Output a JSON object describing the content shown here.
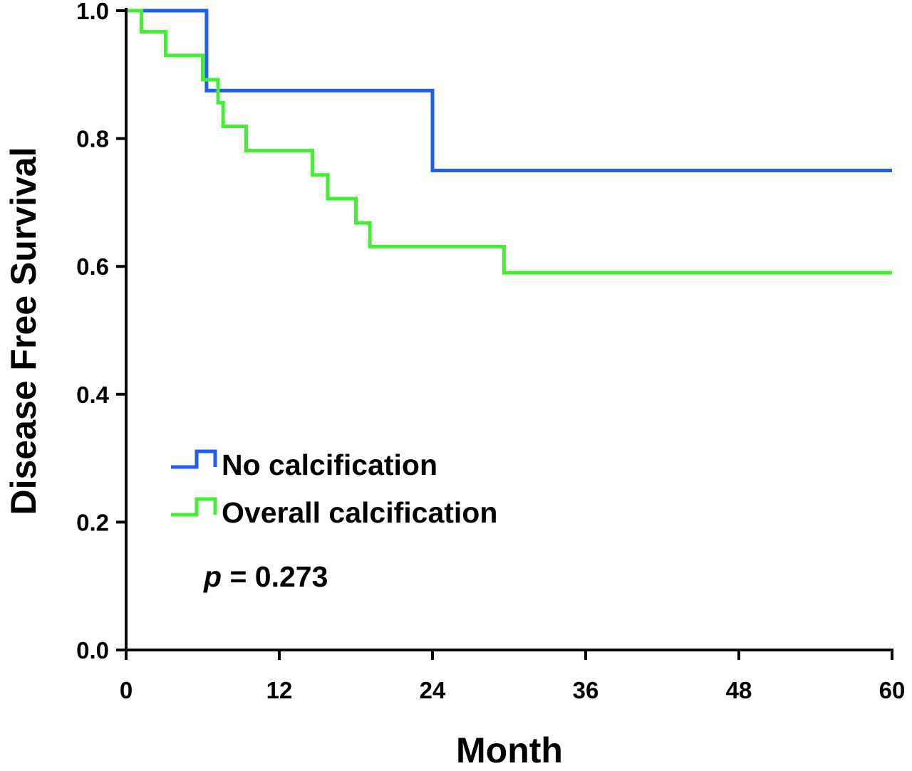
{
  "chart_data": {
    "type": "line",
    "step": true,
    "xlabel": "Month",
    "ylabel": "Disease Free Survival",
    "xlim": [
      0,
      60
    ],
    "ylim": [
      0.0,
      1.0
    ],
    "x_ticks": [
      "0",
      "12",
      "24",
      "36",
      "48",
      "60"
    ],
    "y_ticks": [
      "0.0",
      "0.2",
      "0.4",
      "0.6",
      "0.8",
      "1.0"
    ],
    "grid": false,
    "legend_position": "lower-left",
    "annotation": {
      "italic_part": "p",
      "rest": " = 0.273"
    },
    "series": [
      {
        "name": "No calcification",
        "color": "#1f5ef0",
        "x": [
          0,
          6.3,
          24,
          60
        ],
        "y": [
          1.0,
          0.875,
          0.75,
          0.75
        ]
      },
      {
        "name": "Overall calcification",
        "color": "#44ee33",
        "x": [
          0,
          1.2,
          3.1,
          6.0,
          7.2,
          7.6,
          9.4,
          14.6,
          15.8,
          18.0,
          19.1,
          29.6,
          60
        ],
        "y": [
          1.0,
          0.967,
          0.93,
          0.892,
          0.856,
          0.819,
          0.781,
          0.743,
          0.706,
          0.668,
          0.631,
          0.59,
          0.59
        ]
      }
    ]
  }
}
